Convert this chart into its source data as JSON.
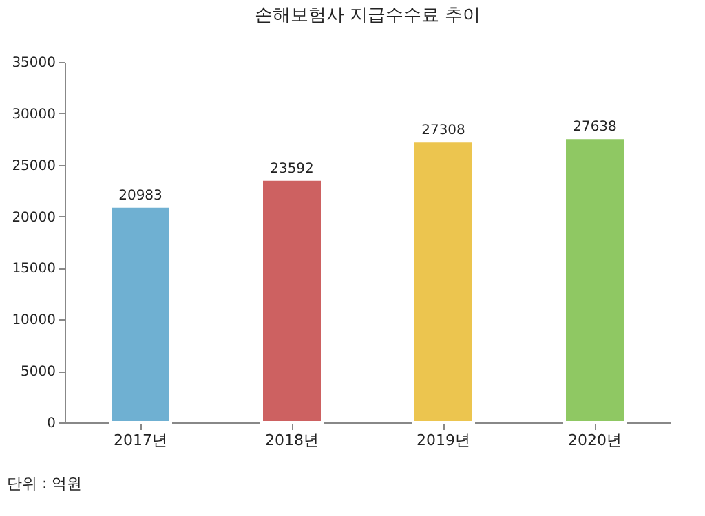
{
  "chart_data": {
    "type": "bar",
    "title": "손해보험사 지급수수료 추이",
    "categories": [
      "2017년",
      "2018년",
      "2019년",
      "2020년"
    ],
    "values": [
      20983,
      23592,
      27308,
      27638
    ],
    "colors": [
      "#6fb0d2",
      "#cd6161",
      "#ecc54f",
      "#8fc863"
    ],
    "ylim": [
      0,
      35000
    ],
    "yticks": [
      0,
      5000,
      10000,
      15000,
      20000,
      25000,
      30000,
      35000
    ],
    "grid": false,
    "data_labels": true,
    "annotations": [
      "단위 : 억원"
    ]
  }
}
